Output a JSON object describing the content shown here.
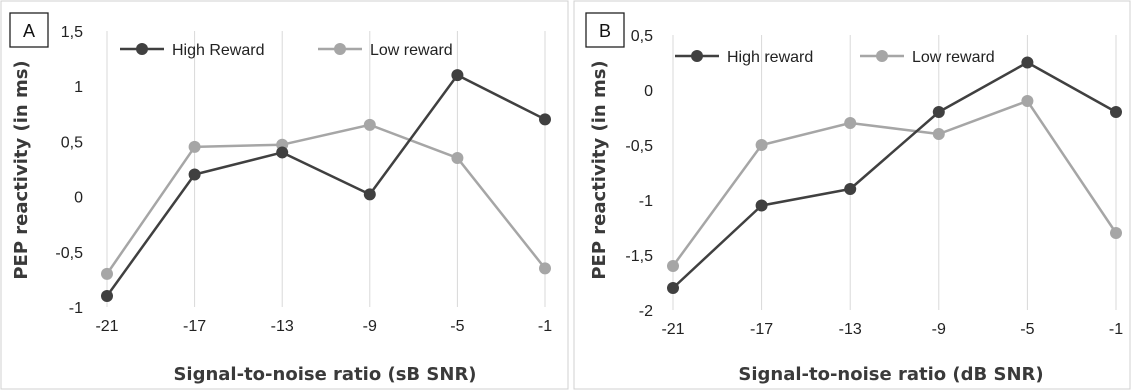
{
  "chart_data": [
    {
      "type": "line",
      "panel_label": "A",
      "categories": [
        "-21",
        "-17",
        "-13",
        "-9",
        "-5",
        "-1"
      ],
      "series": [
        {
          "name": "High Reward",
          "color": "#404040",
          "values": [
            -0.9,
            0.2,
            0.4,
            0.02,
            1.1,
            0.7
          ]
        },
        {
          "name": "Low reward",
          "color": "#a6a6a6",
          "values": [
            -0.7,
            0.45,
            0.47,
            0.65,
            0.35,
            -0.65
          ]
        }
      ],
      "xlabel": "Signal-to-noise ratio (sB SNR)",
      "ylabel": "PEP reactivity (in ms)",
      "ylim": [
        -1,
        1.5
      ],
      "yticks": [
        -1,
        -0.5,
        0,
        0.5,
        1,
        1.5
      ],
      "ytick_labels": [
        "-1",
        "-0,5",
        "0",
        "0,5",
        "1",
        "1,5"
      ],
      "grid": "vertical",
      "legend": "top"
    },
    {
      "type": "line",
      "panel_label": "B",
      "categories": [
        "-21",
        "-17",
        "-13",
        "-9",
        "-5",
        "-1"
      ],
      "series": [
        {
          "name": "High reward",
          "color": "#404040",
          "values": [
            -1.8,
            -1.05,
            -0.9,
            -0.2,
            0.25,
            -0.2
          ]
        },
        {
          "name": "Low reward",
          "color": "#a6a6a6",
          "values": [
            -1.6,
            -0.5,
            -0.3,
            -0.4,
            -0.1,
            -1.3
          ]
        }
      ],
      "xlabel": "Signal-to-noise ratio (dB SNR)",
      "ylabel": "PEP reactivity (in ms)",
      "ylim": [
        -2,
        0.5
      ],
      "yticks": [
        -2,
        -1.5,
        -1,
        -0.5,
        0,
        0.5
      ],
      "ytick_labels": [
        "-2",
        "-1,5",
        "-1",
        "-0,5",
        "0",
        "0,5"
      ],
      "grid": "vertical",
      "legend": "top"
    }
  ]
}
